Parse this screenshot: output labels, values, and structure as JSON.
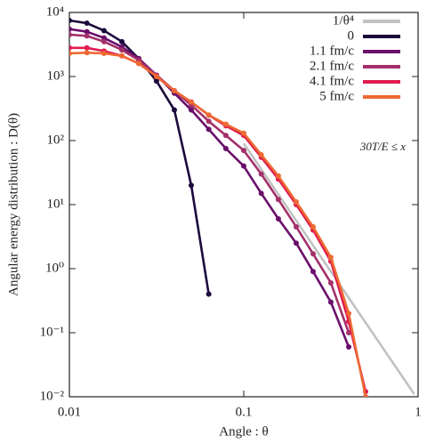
{
  "chart_data": {
    "type": "line",
    "xlabel": "Angle : θ",
    "ylabel": "Angular energy distribution : D(θ)",
    "annotation": "30T/E ≤ x",
    "xscale": "log",
    "yscale": "log",
    "legend": "upper right",
    "xlim": [
      0.01,
      1
    ],
    "xticks": [
      0.01,
      0.1,
      1
    ],
    "ylim": [
      0.01,
      10000
    ],
    "yticks": [
      {
        "value": 0.01,
        "label": "10⁻²"
      },
      {
        "value": 0.1,
        "label": "10⁻¹"
      },
      {
        "value": 1,
        "label": "10⁰"
      },
      {
        "value": 10,
        "label": "10¹"
      },
      {
        "value": 100,
        "label": "10²"
      },
      {
        "value": 1000,
        "label": "10³"
      },
      {
        "value": 10000,
        "label": "10⁴"
      }
    ],
    "x": [
      0.01,
      0.0126,
      0.0158,
      0.02,
      0.025,
      0.0316,
      0.04,
      0.05,
      0.063,
      0.079,
      0.1,
      0.126,
      0.158,
      0.2,
      0.25,
      0.316,
      0.4,
      0.5
    ],
    "series": [
      {
        "name": "1/θ⁴",
        "color": "#c2c2c2",
        "markers": false,
        "x": [
          0.1,
          0.95
        ],
        "values": [
          90,
          0.011
        ]
      },
      {
        "name": "0",
        "color": "#1b0a3c",
        "markers": true,
        "values": [
          7500,
          6800,
          5200,
          3500,
          1900,
          850,
          300,
          20,
          0.4,
          null,
          null,
          null,
          null,
          null,
          null,
          null,
          null,
          null
        ]
      },
      {
        "name": "1.1 fm/c",
        "color": "#6a0f6b",
        "markers": true,
        "values": [
          5500,
          5000,
          4000,
          2900,
          1900,
          1050,
          550,
          300,
          150,
          75,
          40,
          15,
          6,
          2.5,
          0.9,
          0.3,
          0.06,
          null
        ]
      },
      {
        "name": "2.1 fm/c",
        "color": "#a3306a",
        "markers": true,
        "values": [
          4500,
          4300,
          3500,
          2600,
          1800,
          1050,
          600,
          360,
          200,
          120,
          70,
          30,
          12,
          4.5,
          1.7,
          0.6,
          0.1,
          null
        ]
      },
      {
        "name": "4.1 fm/c",
        "color": "#e01c4f",
        "markers": true,
        "values": [
          2800,
          2800,
          2500,
          2100,
          1600,
          1000,
          600,
          400,
          250,
          170,
          120,
          55,
          25,
          10,
          4,
          1.3,
          0.15,
          0.012
        ]
      },
      {
        "name": "5 fm/c",
        "color": "#ee6a33",
        "markers": true,
        "values": [
          2300,
          2350,
          2300,
          2100,
          1600,
          1000,
          600,
          400,
          250,
          180,
          130,
          60,
          28,
          11,
          4.5,
          1.5,
          0.2,
          0.01
        ]
      }
    ]
  }
}
